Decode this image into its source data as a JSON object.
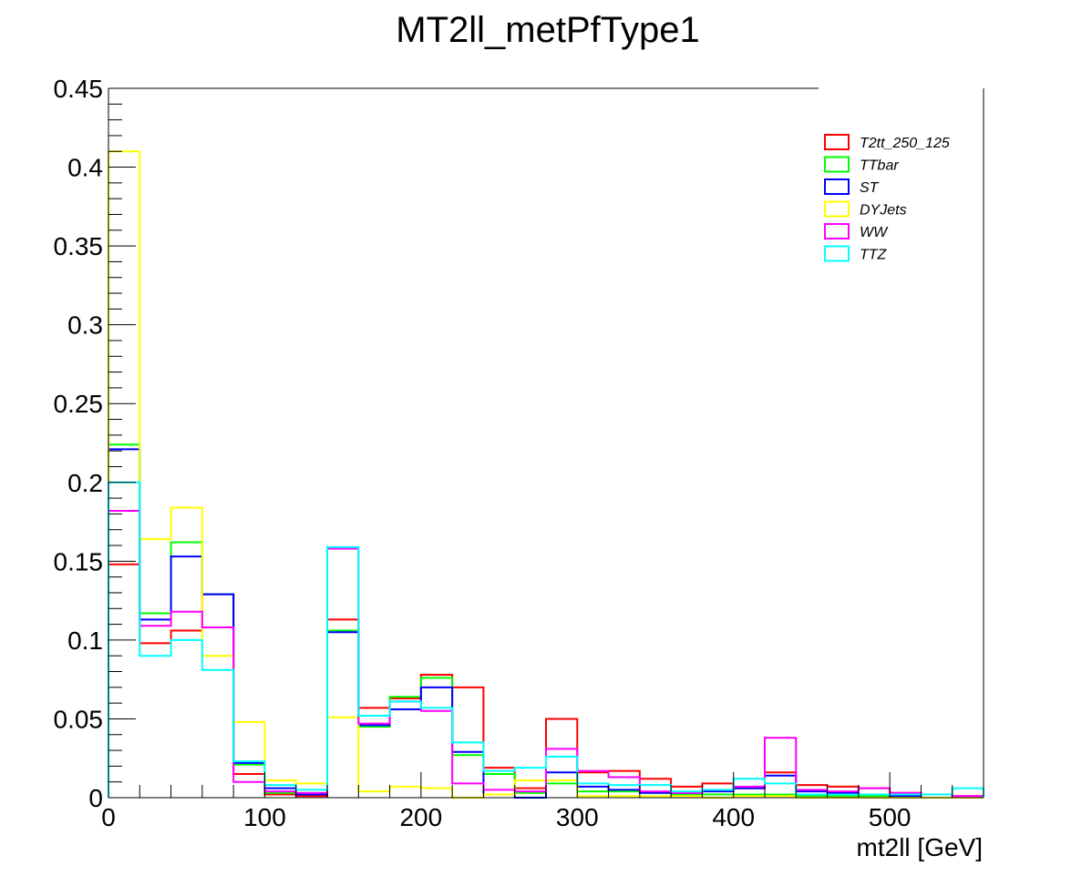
{
  "chart_data": {
    "type": "histogram-step",
    "title": "MT2ll_metPfType1",
    "xlabel": "mt2ll [GeV]",
    "ylabel": "",
    "xlim": [
      0,
      560
    ],
    "ylim": [
      0,
      0.45
    ],
    "bin_edges": [
      0,
      20,
      40,
      60,
      80,
      100,
      120,
      140,
      160,
      180,
      200,
      220,
      240,
      260,
      280,
      300,
      320,
      340,
      360,
      380,
      400,
      420,
      440,
      460,
      480,
      500,
      520,
      540,
      560
    ],
    "x_ticks": [
      0,
      100,
      200,
      300,
      400,
      500
    ],
    "x_tick_labels": [
      "0",
      "100",
      "200",
      "300",
      "400",
      "500"
    ],
    "y_ticks": [
      0,
      0.05,
      0.1,
      0.15,
      0.2,
      0.25,
      0.3,
      0.35,
      0.4,
      0.45
    ],
    "y_tick_labels": [
      "0",
      "0.05",
      "0.1",
      "0.15",
      "0.2",
      "0.25",
      "0.3",
      "0.35",
      "0.4",
      "0.45"
    ],
    "legend_position": "top-right",
    "grid": false,
    "series": [
      {
        "name": "T2tt_250_125",
        "color": "#ff0000",
        "values": [
          0.148,
          0.098,
          0.106,
          0.129,
          0.015,
          0.002,
          0.001,
          0.113,
          0.057,
          0.063,
          0.078,
          0.07,
          0.019,
          0.006,
          0.05,
          0.016,
          0.017,
          0.012,
          0.007,
          0.009,
          0.006,
          0.016,
          0.008,
          0.007,
          0.006,
          0.003,
          0.002,
          0.001
        ]
      },
      {
        "name": "TTbar",
        "color": "#00ff00",
        "values": [
          0.224,
          0.117,
          0.162,
          0.129,
          0.021,
          0.003,
          0.002,
          0.106,
          0.045,
          0.064,
          0.076,
          0.027,
          0.015,
          0.003,
          0.009,
          0.004,
          0.004,
          0.003,
          0.002,
          0.002,
          0.002,
          0.002,
          0.001,
          0.001,
          0.001,
          0.001,
          0.0,
          0.0
        ]
      },
      {
        "name": "ST",
        "color": "#0000ff",
        "values": [
          0.221,
          0.113,
          0.153,
          0.129,
          0.022,
          0.006,
          0.002,
          0.105,
          0.046,
          0.056,
          0.07,
          0.029,
          0.002,
          0.0,
          0.016,
          0.007,
          0.005,
          0.003,
          0.003,
          0.004,
          0.006,
          0.014,
          0.004,
          0.003,
          0.002,
          0.001,
          0.0,
          0.0
        ]
      },
      {
        "name": "DYJets",
        "color": "#ffff00",
        "values": [
          0.41,
          0.164,
          0.184,
          0.09,
          0.048,
          0.011,
          0.009,
          0.051,
          0.004,
          0.007,
          0.006,
          0.0,
          0.002,
          0.011,
          0.011,
          0.001,
          0.001,
          0.001,
          0.001,
          0.0,
          0.001,
          0.001,
          0.0,
          0.0,
          0.0,
          0.0,
          0.0,
          0.0
        ]
      },
      {
        "name": "WW",
        "color": "#ff00ff",
        "values": [
          0.182,
          0.109,
          0.118,
          0.108,
          0.01,
          0.004,
          0.003,
          0.158,
          0.047,
          0.061,
          0.055,
          0.009,
          0.005,
          0.004,
          0.031,
          0.017,
          0.013,
          0.004,
          0.003,
          0.005,
          0.007,
          0.038,
          0.005,
          0.004,
          0.006,
          0.003,
          0.002,
          0.001
        ]
      },
      {
        "name": "TTZ",
        "color": "#00ffff",
        "values": [
          0.2,
          0.09,
          0.1,
          0.081,
          0.023,
          0.008,
          0.005,
          0.159,
          0.052,
          0.061,
          0.057,
          0.035,
          0.017,
          0.019,
          0.026,
          0.009,
          0.008,
          0.008,
          0.004,
          0.005,
          0.012,
          0.009,
          0.002,
          0.002,
          0.002,
          0.002,
          0.002,
          0.006
        ]
      }
    ]
  }
}
